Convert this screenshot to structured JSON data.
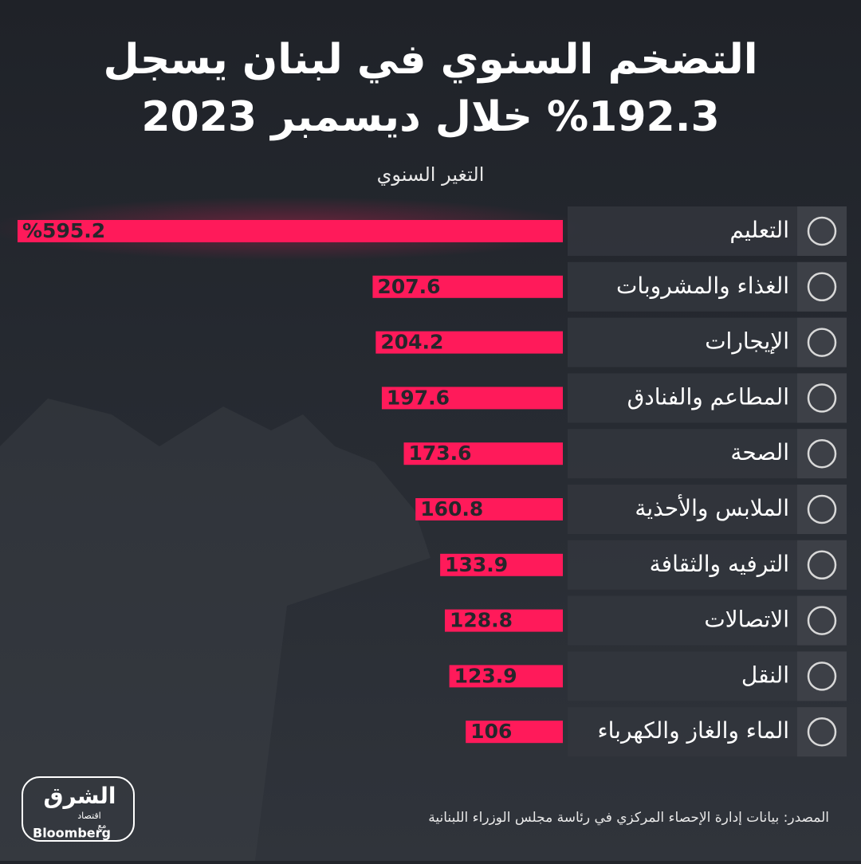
{
  "chart_data": {
    "type": "bar",
    "orientation": "horizontal",
    "title": [
      "التضخم السنوي في لبنان يسجل",
      "%192.3 خلال ديسمبر 2023"
    ],
    "subtitle": "التغير السنوي",
    "categories": [
      "التعليم",
      "الغذاء والمشروبات",
      "الإيجارات",
      "المطاعم والفنادق",
      "الصحة",
      "الملابس والأحذية",
      "الترفيه والثقافة",
      "الاتصالات",
      "النقل",
      "الماء والغاز والكهرباء"
    ],
    "values": [
      595.2,
      207.6,
      204.2,
      197.6,
      173.6,
      160.8,
      133.9,
      128.8,
      123.9,
      106
    ],
    "value_labels": [
      "%595.2",
      "207.6",
      "204.2",
      "197.6",
      "173.6",
      "160.8",
      "133.9",
      "128.8",
      "123.9",
      "106"
    ],
    "color": "#ff1a5a",
    "source": "المصدر: بيانات إدارة الإحصاء المركزي في رئاسة مجلس الوزراء اللبنانية",
    "logo": {
      "name": "الشرق",
      "sub": "اقتصاد",
      "with": "مع",
      "partner": "Bloomberg"
    }
  }
}
